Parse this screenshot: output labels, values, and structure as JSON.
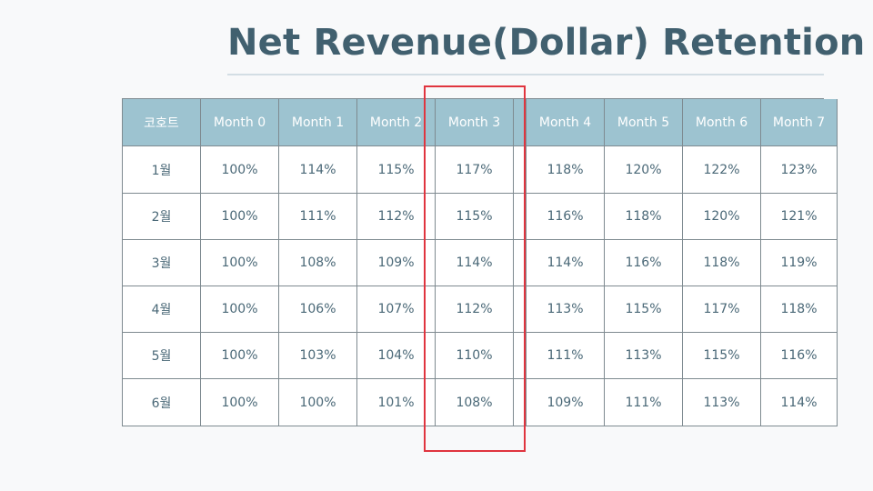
{
  "title": "Net Revenue(Dollar) Retention",
  "table": {
    "headers": [
      "코호트",
      "Month 0",
      "Month 1",
      "Month 2",
      "Month 3",
      "",
      "Month 4",
      "Month 5",
      "Month 6",
      "Month 7"
    ],
    "rows": [
      {
        "cohort": "1월",
        "values": [
          "100%",
          "114%",
          "115%",
          "117%",
          "",
          "118%",
          "120%",
          "122%",
          "123%"
        ]
      },
      {
        "cohort": "2월",
        "values": [
          "100%",
          "111%",
          "112%",
          "115%",
          "",
          "116%",
          "118%",
          "120%",
          "121%"
        ]
      },
      {
        "cohort": "3월",
        "values": [
          "100%",
          "108%",
          "109%",
          "114%",
          "",
          "114%",
          "116%",
          "118%",
          "119%"
        ]
      },
      {
        "cohort": "4월",
        "values": [
          "100%",
          "106%",
          "107%",
          "112%",
          "",
          "113%",
          "115%",
          "117%",
          "118%"
        ]
      },
      {
        "cohort": "5월",
        "values": [
          "100%",
          "103%",
          "104%",
          "110%",
          "",
          "111%",
          "113%",
          "115%",
          "116%"
        ]
      },
      {
        "cohort": "6월",
        "values": [
          "100%",
          "100%",
          "101%",
          "108%",
          "",
          "109%",
          "111%",
          "113%",
          "114%"
        ]
      }
    ]
  },
  "colors": {
    "title": "#41606f",
    "header_bg": "#9dc3d0",
    "header_text": "#ffffff",
    "cell_text": "#4a6877",
    "grid_line": "#7e8a90",
    "highlight": "#e0353f"
  }
}
